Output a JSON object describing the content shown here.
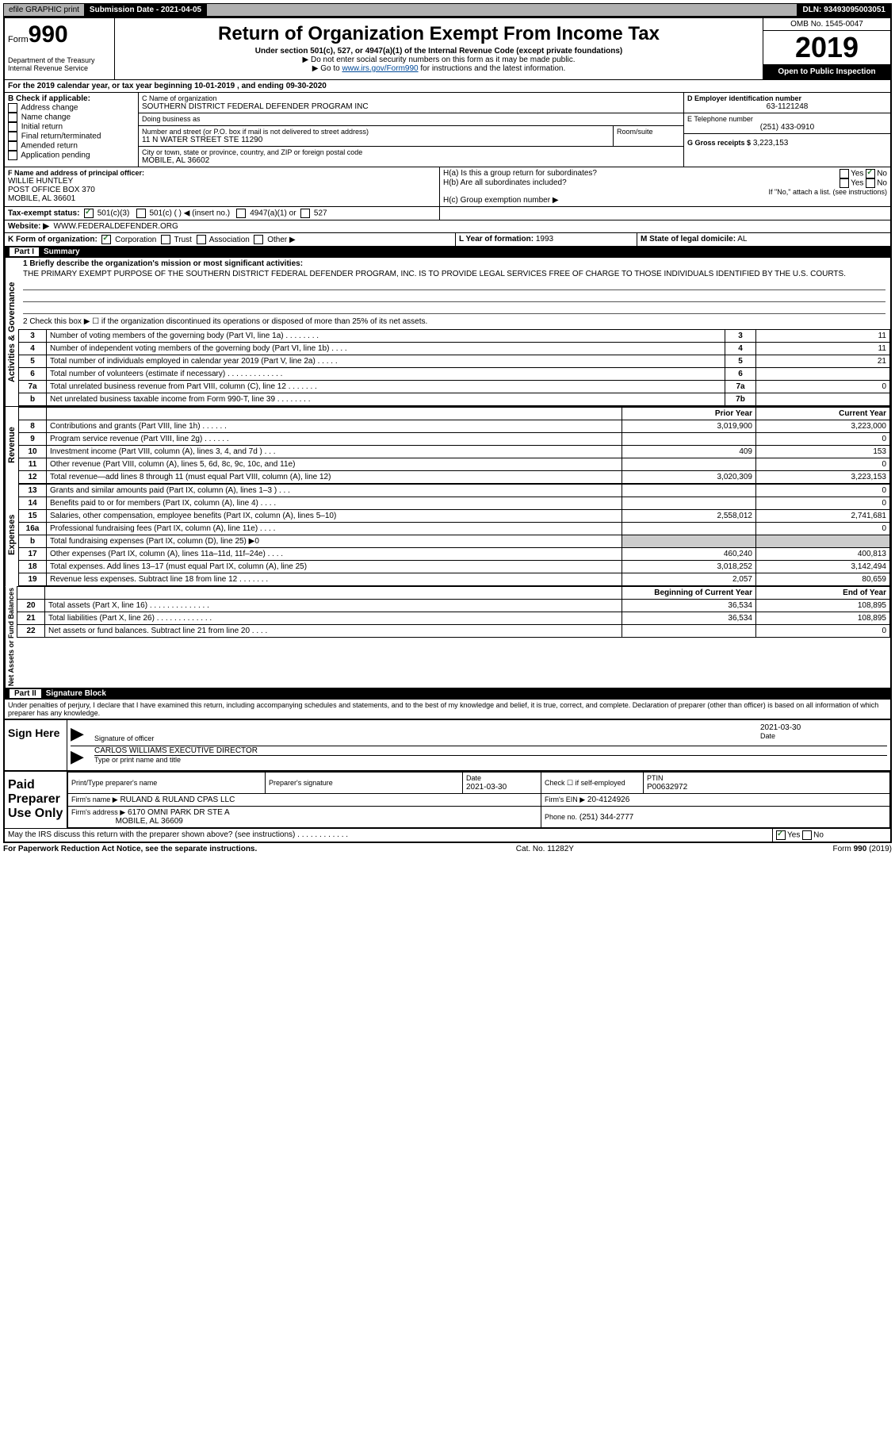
{
  "topbar": {
    "efile": "efile GRAPHIC print",
    "subdate_label": "Submission Date - 2021-04-05",
    "dln": "DLN: 93493095003051"
  },
  "header": {
    "form_label": "Form",
    "form_num": "990",
    "title": "Return of Organization Exempt From Income Tax",
    "sub1": "Under section 501(c), 527, or 4947(a)(1) of the Internal Revenue Code (except private foundations)",
    "sub2": "▶ Do not enter social security numbers on this form as it may be made public.",
    "sub3_pre": "▶ Go to ",
    "sub3_link": "www.irs.gov/Form990",
    "sub3_post": " for instructions and the latest information.",
    "dept": "Department of the Treasury\nInternal Revenue Service",
    "omb": "OMB No. 1545-0047",
    "year": "2019",
    "open": "Open to Public Inspection"
  },
  "periodA": "For the 2019 calendar year, or tax year beginning 10-01-2019 , and ending 09-30-2020",
  "boxB": {
    "label": "B Check if applicable:",
    "items": [
      "Address change",
      "Name change",
      "Initial return",
      "Final return/terminated",
      "Amended return",
      "Application pending"
    ]
  },
  "boxC": {
    "name_label": "C Name of organization",
    "name": "SOUTHERN DISTRICT FEDERAL DEFENDER PROGRAM INC",
    "dba_label": "Doing business as",
    "addr_label": "Number and street (or P.O. box if mail is not delivered to street address)",
    "room_label": "Room/suite",
    "addr": "11 N WATER STREET STE 11290",
    "city_label": "City or town, state or province, country, and ZIP or foreign postal code",
    "city": "MOBILE, AL  36602"
  },
  "boxD": {
    "label": "D Employer identification number",
    "val": "63-1121248"
  },
  "boxE": {
    "label": "E Telephone number",
    "val": "(251) 433-0910"
  },
  "boxG": {
    "label": "G Gross receipts $",
    "val": "3,223,153"
  },
  "boxF": {
    "label": "F Name and address of principal officer:",
    "name": "WILLIE HUNTLEY",
    "addr1": "POST OFFICE BOX 370",
    "addr2": "MOBILE, AL  36601"
  },
  "boxH": {
    "a": "H(a) Is this a group return for subordinates?",
    "b": "H(b) Are all subordinates included?",
    "note": "If \"No,\" attach a list. (see instructions)",
    "c": "H(c) Group exemption number ▶"
  },
  "boxI": {
    "label": "Tax-exempt status:",
    "c3": "501(c)(3)",
    "c": "501(c) (   ) ◀ (insert no.)",
    "a1": "4947(a)(1) or",
    "s527": "527"
  },
  "boxJ": {
    "label": "Website: ▶",
    "val": "WWW.FEDERALDEFENDER.ORG"
  },
  "boxK": {
    "label": "K Form of organization:",
    "opts": [
      "Corporation",
      "Trust",
      "Association",
      "Other ▶"
    ]
  },
  "boxL": {
    "label": "L Year of formation:",
    "val": "1993"
  },
  "boxM": {
    "label": "M State of legal domicile:",
    "val": "AL"
  },
  "part1": {
    "hdr": "Part I",
    "title": "Summary",
    "q1": "1  Briefly describe the organization's mission or most significant activities:",
    "mission": "THE PRIMARY EXEMPT PURPOSE OF THE SOUTHERN DISTRICT FEDERAL DEFENDER PROGRAM, INC. IS TO PROVIDE LEGAL SERVICES FREE OF CHARGE TO THOSE INDIVIDUALS IDENTIFIED BY THE U.S. COURTS.",
    "q2": "2  Check this box ▶ ☐ if the organization discontinued its operations or disposed of more than 25% of its net assets.",
    "side_act": "Activities & Governance",
    "side_rev": "Revenue",
    "side_exp": "Expenses",
    "side_net": "Net Assets or Fund Balances",
    "col_prior": "Prior Year",
    "col_curr": "Current Year",
    "col_beg": "Beginning of Current Year",
    "col_end": "End of Year",
    "rows_gov": [
      {
        "n": "3",
        "t": "Number of voting members of the governing body (Part VI, line 1a)  .   .   .   .   .   .   .   .",
        "box": "3",
        "v": "11"
      },
      {
        "n": "4",
        "t": "Number of independent voting members of the governing body (Part VI, line 1b)  .   .   .   .",
        "box": "4",
        "v": "11"
      },
      {
        "n": "5",
        "t": "Total number of individuals employed in calendar year 2019 (Part V, line 2a)  .   .   .   .   .",
        "box": "5",
        "v": "21"
      },
      {
        "n": "6",
        "t": "Total number of volunteers (estimate if necessary)   .   .   .   .   .   .   .   .   .   .   .   .   .",
        "box": "6",
        "v": ""
      },
      {
        "n": "7a",
        "t": "Total unrelated business revenue from Part VIII, column (C), line 12   .   .   .   .   .   .   .",
        "box": "7a",
        "v": "0"
      },
      {
        "n": "b",
        "t": "Net unrelated business taxable income from Form 990-T, line 39  .   .   .   .   .   .   .   .",
        "box": "7b",
        "v": ""
      }
    ],
    "rows_rev": [
      {
        "n": "8",
        "t": "Contributions and grants (Part VIII, line 1h)  .   .   .   .   .   .",
        "p": "3,019,900",
        "c": "3,223,000"
      },
      {
        "n": "9",
        "t": "Program service revenue (Part VIII, line 2g)  .   .   .   .   .   .",
        "p": "",
        "c": "0"
      },
      {
        "n": "10",
        "t": "Investment income (Part VIII, column (A), lines 3, 4, and 7d )   .   .   .",
        "p": "409",
        "c": "153"
      },
      {
        "n": "11",
        "t": "Other revenue (Part VIII, column (A), lines 5, 6d, 8c, 9c, 10c, and 11e)",
        "p": "",
        "c": "0"
      },
      {
        "n": "12",
        "t": "Total revenue—add lines 8 through 11 (must equal Part VIII, column (A), line 12)",
        "p": "3,020,309",
        "c": "3,223,153"
      }
    ],
    "rows_exp": [
      {
        "n": "13",
        "t": "Grants and similar amounts paid (Part IX, column (A), lines 1–3 )  .   .   .",
        "p": "",
        "c": "0"
      },
      {
        "n": "14",
        "t": "Benefits paid to or for members (Part IX, column (A), line 4)  .   .   .   .",
        "p": "",
        "c": "0"
      },
      {
        "n": "15",
        "t": "Salaries, other compensation, employee benefits (Part IX, column (A), lines 5–10)",
        "p": "2,558,012",
        "c": "2,741,681"
      },
      {
        "n": "16a",
        "t": "Professional fundraising fees (Part IX, column (A), line 11e)  .   .   .   .",
        "p": "",
        "c": "0"
      },
      {
        "n": "b",
        "t": "Total fundraising expenses (Part IX, column (D), line 25) ▶0",
        "p": "SHADE",
        "c": "SHADE"
      },
      {
        "n": "17",
        "t": "Other expenses (Part IX, column (A), lines 11a–11d, 11f–24e)  .   .   .   .",
        "p": "460,240",
        "c": "400,813"
      },
      {
        "n": "18",
        "t": "Total expenses. Add lines 13–17 (must equal Part IX, column (A), line 25)",
        "p": "3,018,252",
        "c": "3,142,494"
      },
      {
        "n": "19",
        "t": "Revenue less expenses. Subtract line 18 from line 12  .   .   .   .   .   .   .",
        "p": "2,057",
        "c": "80,659"
      }
    ],
    "rows_net": [
      {
        "n": "20",
        "t": "Total assets (Part X, line 16)  .   .   .   .   .   .   .   .   .   .   .   .   .   .",
        "p": "36,534",
        "c": "108,895"
      },
      {
        "n": "21",
        "t": "Total liabilities (Part X, line 26)  .   .   .   .   .   .   .   .   .   .   .   .   .",
        "p": "36,534",
        "c": "108,895"
      },
      {
        "n": "22",
        "t": "Net assets or fund balances. Subtract line 21 from line 20  .   .   .   .",
        "p": "",
        "c": "0"
      }
    ]
  },
  "part2": {
    "hdr": "Part II",
    "title": "Signature Block",
    "decl": "Under penalties of perjury, I declare that I have examined this return, including accompanying schedules and statements, and to the best of my knowledge and belief, it is true, correct, and complete. Declaration of preparer (other than officer) is based on all information of which preparer has any knowledge."
  },
  "sign": {
    "here": "Sign Here",
    "sig_officer": "Signature of officer",
    "date_label": "Date",
    "date": "2021-03-30",
    "name": "CARLOS WILLIAMS  EXECUTIVE DIRECTOR",
    "name_label": "Type or print name and title"
  },
  "paid": {
    "label": "Paid Preparer Use Only",
    "col1": "Print/Type preparer's name",
    "col2": "Preparer's signature",
    "col3": "Date",
    "date": "2021-03-30",
    "col4": "Check ☐ if self-employed",
    "col5": "PTIN",
    "ptin": "P00632972",
    "firm_label": "Firm's name   ▶",
    "firm": "RULAND & RULAND CPAS LLC",
    "ein_label": "Firm's EIN ▶",
    "ein": "20-4124926",
    "addr_label": "Firm's address ▶",
    "addr1": "6170 OMNI PARK DR STE A",
    "addr2": "MOBILE, AL  36609",
    "phone_label": "Phone no.",
    "phone": "(251) 344-2777"
  },
  "discuss": "May the IRS discuss this return with the preparer shown above? (see instructions)   .   .   .   .   .   .   .   .   .   .   .   .",
  "footer": {
    "pra": "For Paperwork Reduction Act Notice, see the separate instructions.",
    "cat": "Cat. No. 11282Y",
    "form": "Form 990 (2019)"
  }
}
